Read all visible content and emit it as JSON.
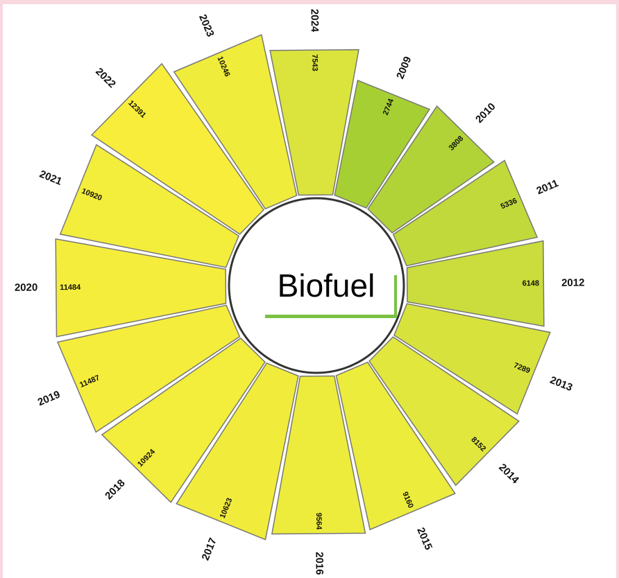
{
  "chart_data": {
    "type": "bar",
    "subtype": "circular-radial-bar",
    "title": "Biofuel",
    "categories": [
      "2009",
      "2010",
      "2011",
      "2012",
      "2013",
      "2014",
      "2015",
      "2016",
      "2017",
      "2018",
      "2019",
      "2020",
      "2021",
      "2022",
      "2023",
      "2024"
    ],
    "values": [
      2744,
      3808,
      5336,
      6148,
      7289,
      8152,
      9160,
      9564,
      10623,
      10924,
      11487,
      11484,
      10920,
      12391,
      10246,
      7543
    ],
    "color_scale": [
      "#a6cf34",
      "#c8dc3c",
      "#ecec3c",
      "#f8ed3a"
    ],
    "legend": "none",
    "grid": false
  }
}
